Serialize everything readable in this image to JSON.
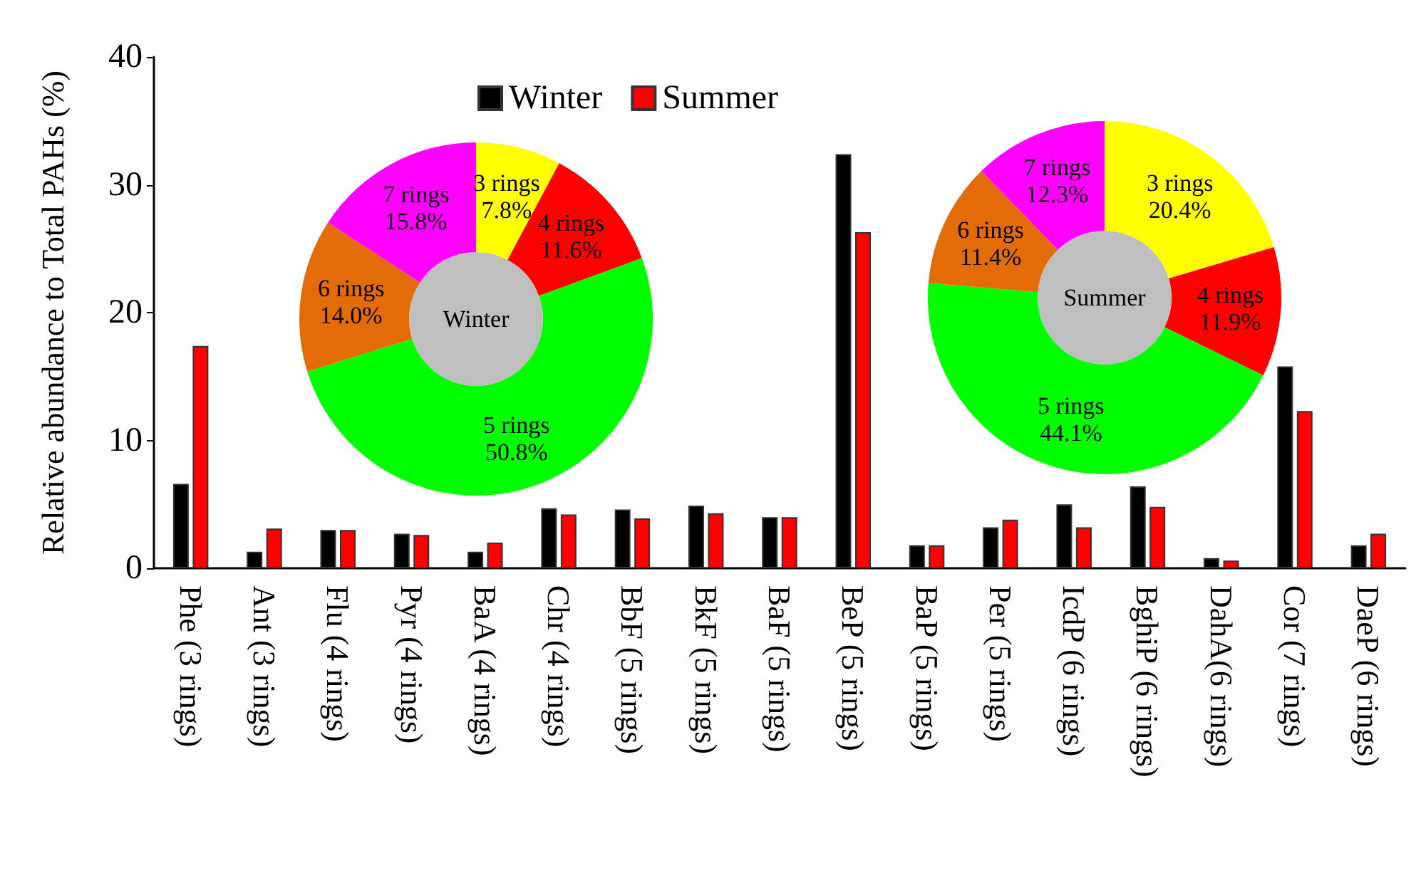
{
  "chart_data": [
    {
      "type": "bar",
      "ylabel": "Relative abundance to Total PAHs (%)",
      "categories": [
        "Phe (3 rings)",
        "Ant (3 rings)",
        "Flu (4 rings)",
        "Pyr (4 rings)",
        "BaA (4 rings)",
        "Chr (4 rings)",
        "BbF (5 rings)",
        "BkF (5 rings)",
        "BaF (5 rings)",
        "BeP (5 rings)",
        "BaP (5 rings)",
        "Per (5 rings)",
        "IcdP (6 rings)",
        "BghiP (6 rings)",
        "DahA(6 rings)",
        "Cor (7 rings)",
        "DaeP (6 rings)"
      ],
      "series": [
        {
          "name": "Winter",
          "color": "#000000",
          "values": [
            6.6,
            1.3,
            3.0,
            2.7,
            1.3,
            4.7,
            4.6,
            4.9,
            4.0,
            32.4,
            1.8,
            3.2,
            5.0,
            6.4,
            0.8,
            15.8,
            1.8
          ]
        },
        {
          "name": "Summer",
          "color": "#ff0000",
          "values": [
            17.4,
            3.1,
            3.0,
            2.6,
            2.0,
            4.2,
            3.9,
            4.3,
            4.0,
            26.3,
            1.8,
            3.8,
            3.2,
            4.8,
            0.6,
            12.3,
            2.7
          ]
        }
      ],
      "ylim": [
        0,
        40
      ],
      "yticks": [
        0,
        10,
        20,
        30,
        40
      ],
      "legend": "top"
    },
    {
      "type": "donut",
      "title": "Winter",
      "categories": [
        "3 rings",
        "4 rings",
        "5 rings",
        "6 rings",
        "7 rings"
      ],
      "values": [
        7.8,
        11.6,
        50.8,
        14.0,
        15.8
      ],
      "value_labels": [
        "7.8%",
        "11.6%",
        "50.8%",
        "14.0%",
        "15.8%"
      ],
      "colors": [
        "#ffff00",
        "#ff0000",
        "#00ff00",
        "#e36c09",
        "#ff00ff"
      ]
    },
    {
      "type": "donut",
      "title": "Summer",
      "categories": [
        "3 rings",
        "4 rings",
        "5 rings",
        "6 rings",
        "7 rings"
      ],
      "values": [
        20.4,
        11.9,
        44.1,
        11.4,
        12.3
      ],
      "value_labels": [
        "20.4%",
        "11.9%",
        "44.1%",
        "11.4%",
        "12.3%"
      ],
      "colors": [
        "#ffff00",
        "#ff0000",
        "#00ff00",
        "#e36c09",
        "#ff00ff"
      ]
    }
  ]
}
